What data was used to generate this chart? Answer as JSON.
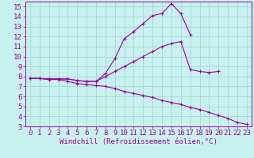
{
  "xlabel": "Windchill (Refroidissement éolien,°C)",
  "background_color": "#c8f0ee",
  "grid_color": "#a8dcd9",
  "line_color": "#990099",
  "xlim": [
    -0.5,
    23.5
  ],
  "ylim": [
    3,
    15.5
  ],
  "xticks": [
    0,
    1,
    2,
    3,
    4,
    5,
    6,
    7,
    8,
    9,
    10,
    11,
    12,
    13,
    14,
    15,
    16,
    17,
    18,
    19,
    20,
    21,
    22,
    23
  ],
  "yticks": [
    3,
    4,
    5,
    6,
    7,
    8,
    9,
    10,
    11,
    12,
    13,
    14,
    15
  ],
  "curve1_y": [
    7.8,
    7.8,
    7.75,
    7.75,
    7.75,
    7.6,
    7.5,
    7.5,
    8.3,
    9.8,
    11.8,
    12.5,
    13.3,
    14.1,
    14.3,
    15.3,
    14.3,
    12.2,
    null,
    null,
    null,
    null,
    null,
    null
  ],
  "curve2_y": [
    7.8,
    7.8,
    7.75,
    7.75,
    7.75,
    7.6,
    7.5,
    7.5,
    8.0,
    8.5,
    9.0,
    9.5,
    10.0,
    10.5,
    11.0,
    11.3,
    11.5,
    8.7,
    8.5,
    8.4,
    8.5,
    null,
    null,
    null
  ],
  "curve3_y": [
    7.8,
    7.8,
    7.7,
    7.7,
    7.5,
    7.3,
    7.2,
    7.1,
    7.0,
    6.8,
    6.5,
    6.3,
    6.1,
    5.9,
    5.6,
    5.4,
    5.2,
    4.9,
    4.7,
    4.4,
    4.1,
    3.8,
    3.4,
    3.2
  ],
  "fontsize_ticks": 6.5,
  "fontsize_label": 6.5
}
